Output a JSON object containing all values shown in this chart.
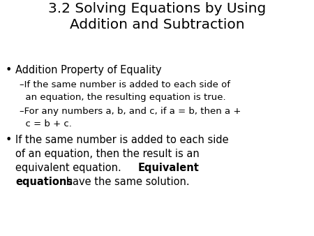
{
  "title_line1": "3.2 Solving Equations by Using",
  "title_line2": "Addition and Subtraction",
  "title_fontsize": 14.5,
  "body_fontsize": 10.5,
  "sub_fontsize": 9.5,
  "background_color": "#ffffff",
  "text_color": "#000000",
  "bullet1": "Addition Property of Equality",
  "sub1_line1": "–If the same number is added to each side of",
  "sub1_line2": "  an equation, the resulting equation is true.",
  "sub2_line1": "–For any numbers a, b, and c, if a = b, then a +",
  "sub2_line2": "  c = b + c.",
  "b2_l1": "If the same number is added to each side",
  "b2_l2": "of an equation, then the result is an",
  "b2_l3_normal": "equivalent equation.  ",
  "b2_l3_bold": "Equivalent",
  "b2_l4_bold": "equations",
  "b2_l4_normal": " have the same solution."
}
